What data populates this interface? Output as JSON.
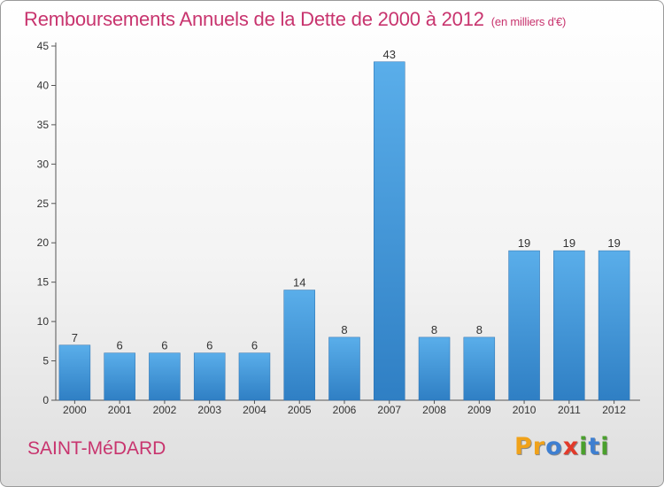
{
  "chart_data": {
    "type": "bar",
    "title": "Remboursements Annuels de la Dette de 2000 à 2012",
    "subtitle": "(en milliers d'€)",
    "categories": [
      "2000",
      "2001",
      "2002",
      "2003",
      "2004",
      "2005",
      "2006",
      "2007",
      "2008",
      "2009",
      "2010",
      "2011",
      "2012"
    ],
    "values": [
      7,
      6,
      6,
      6,
      6,
      14,
      8,
      43,
      8,
      8,
      19,
      19,
      19
    ],
    "ylim": [
      0,
      45
    ],
    "yticks": [
      0,
      5,
      10,
      15,
      20,
      25,
      30,
      35,
      40,
      45
    ],
    "xlabel": "",
    "ylabel": "",
    "grid": false,
    "bar_color": "#3d8fd6"
  },
  "footer": {
    "town": "SAINT-MéDARD",
    "logo_letters": [
      {
        "ch": "P",
        "color": "#f0a21a"
      },
      {
        "ch": "r",
        "color": "#f0a21a"
      },
      {
        "ch": "o",
        "color": "#3e7fd1"
      },
      {
        "ch": "x",
        "color": "#e23a2a"
      },
      {
        "ch": "i",
        "color": "#4aa02c"
      },
      {
        "ch": "t",
        "color": "#3e7fd1"
      },
      {
        "ch": "i",
        "color": "#4aa02c"
      }
    ]
  }
}
